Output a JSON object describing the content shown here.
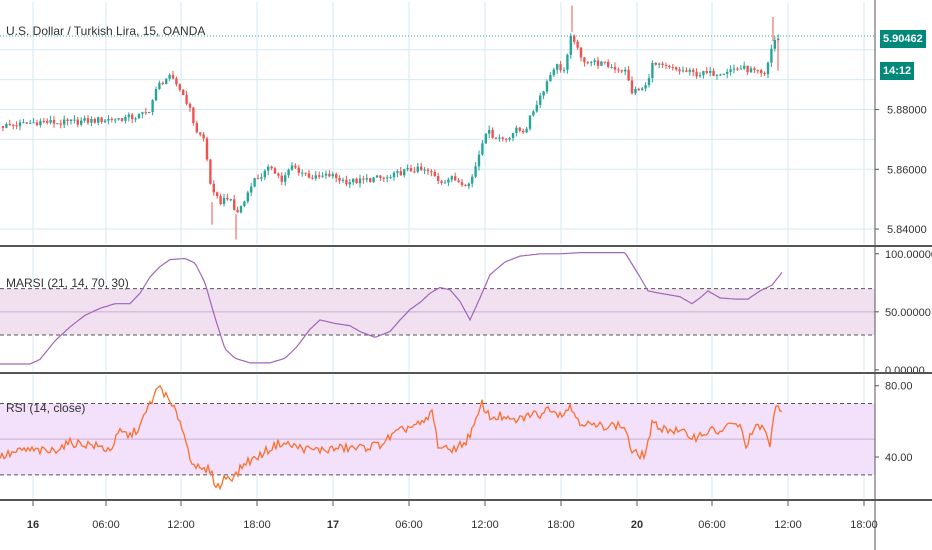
{
  "colors": {
    "up": "#26a69a",
    "down": "#ef5350",
    "marsi_line": "#a066b8",
    "marsi_band": "#f0e0f0",
    "rsi_line": "#ff6d2a",
    "rsi_band": "#f3e1fb",
    "last_price_line": "#26a69a",
    "grid": "#d6eaf0",
    "separator": "#555555",
    "axis_text": "#333333"
  },
  "chart_data": [
    {
      "type": "candlestick",
      "title": "U.S. Dollar / Turkish Lira, 15, OANDA",
      "last_price_label": "5.90462",
      "countdown_label": "14:12",
      "last_price": 5.90462,
      "ylim": [
        5.835,
        5.916
      ],
      "y_ticks": [
        5.84,
        5.86,
        5.88
      ],
      "y_tick_labels": [
        "5.84000",
        "5.86000",
        "5.88000"
      ],
      "grid": true,
      "keypoints": [
        [
          0,
          5.8745
        ],
        [
          20,
          5.875
        ],
        [
          40,
          5.876
        ],
        [
          60,
          5.8755
        ],
        [
          80,
          5.876
        ],
        [
          100,
          5.8765
        ],
        [
          120,
          5.877
        ],
        [
          135,
          5.8775
        ],
        [
          148,
          5.879
        ],
        [
          158,
          5.888
        ],
        [
          168,
          5.891
        ],
        [
          178,
          5.888
        ],
        [
          188,
          5.882
        ],
        [
          196,
          5.873
        ],
        [
          204,
          5.87
        ],
        [
          212,
          5.852
        ],
        [
          220,
          5.849
        ],
        [
          228,
          5.851
        ],
        [
          236,
          5.845
        ],
        [
          244,
          5.849
        ],
        [
          252,
          5.856
        ],
        [
          262,
          5.858
        ],
        [
          272,
          5.861
        ],
        [
          282,
          5.856
        ],
        [
          292,
          5.861
        ],
        [
          302,
          5.859
        ],
        [
          315,
          5.857
        ],
        [
          330,
          5.858
        ],
        [
          345,
          5.856
        ],
        [
          360,
          5.856
        ],
        [
          375,
          5.857
        ],
        [
          390,
          5.857
        ],
        [
          400,
          5.859
        ],
        [
          415,
          5.86
        ],
        [
          430,
          5.859
        ],
        [
          440,
          5.856
        ],
        [
          450,
          5.857
        ],
        [
          460,
          5.856
        ],
        [
          470,
          5.855
        ],
        [
          478,
          5.864
        ],
        [
          485,
          5.873
        ],
        [
          495,
          5.871
        ],
        [
          505,
          5.87
        ],
        [
          515,
          5.873
        ],
        [
          525,
          5.873
        ],
        [
          535,
          5.881
        ],
        [
          545,
          5.888
        ],
        [
          555,
          5.895
        ],
        [
          565,
          5.893
        ],
        [
          572,
          5.906
        ],
        [
          580,
          5.897
        ],
        [
          592,
          5.896
        ],
        [
          605,
          5.895
        ],
        [
          615,
          5.894
        ],
        [
          625,
          5.893
        ],
        [
          632,
          5.886
        ],
        [
          645,
          5.887
        ],
        [
          652,
          5.895
        ],
        [
          665,
          5.894
        ],
        [
          680,
          5.893
        ],
        [
          695,
          5.892
        ],
        [
          710,
          5.892
        ],
        [
          725,
          5.893
        ],
        [
          740,
          5.894
        ],
        [
          752,
          5.893
        ],
        [
          765,
          5.891
        ],
        [
          773,
          5.903
        ],
        [
          780,
          5.904
        ]
      ]
    },
    {
      "type": "line",
      "title": "MARSI (21, 14, 70, 30)",
      "ylim": [
        -1,
        105
      ],
      "y_ticks": [
        0,
        50,
        100
      ],
      "y_tick_labels": [
        "0.00000",
        "50.00000",
        "100.00000"
      ],
      "band": [
        30,
        70
      ],
      "series": [
        {
          "name": "MARSI",
          "keypoints": [
            [
              0,
              5
            ],
            [
              30,
              5
            ],
            [
              40,
              9
            ],
            [
              55,
              25
            ],
            [
              70,
              37
            ],
            [
              85,
              47
            ],
            [
              100,
              53
            ],
            [
              115,
              57
            ],
            [
              130,
              57
            ],
            [
              140,
              66
            ],
            [
              150,
              80
            ],
            [
              160,
              89
            ],
            [
              170,
              95
            ],
            [
              185,
              96
            ],
            [
              195,
              92
            ],
            [
              205,
              75
            ],
            [
              215,
              45
            ],
            [
              225,
              18
            ],
            [
              235,
              10
            ],
            [
              250,
              6
            ],
            [
              270,
              6
            ],
            [
              285,
              10
            ],
            [
              297,
              20
            ],
            [
              310,
              35
            ],
            [
              320,
              43
            ],
            [
              335,
              40
            ],
            [
              350,
              38
            ],
            [
              360,
              33
            ],
            [
              375,
              28
            ],
            [
              390,
              33
            ],
            [
              400,
              43
            ],
            [
              410,
              52
            ],
            [
              420,
              58
            ],
            [
              430,
              66
            ],
            [
              440,
              71
            ],
            [
              450,
              69
            ],
            [
              460,
              59
            ],
            [
              470,
              43
            ],
            [
              480,
              62
            ],
            [
              490,
              82
            ],
            [
              505,
              93
            ],
            [
              520,
              98
            ],
            [
              540,
              100
            ],
            [
              560,
              100
            ],
            [
              580,
              101
            ],
            [
              600,
              101
            ],
            [
              625,
              101
            ],
            [
              640,
              80
            ],
            [
              648,
              68
            ],
            [
              660,
              66
            ],
            [
              680,
              63
            ],
            [
              692,
              57
            ],
            [
              700,
              62
            ],
            [
              708,
              68
            ],
            [
              720,
              62
            ],
            [
              735,
              61
            ],
            [
              748,
              61
            ],
            [
              760,
              68
            ],
            [
              772,
              73
            ],
            [
              782,
              84
            ]
          ]
        }
      ]
    },
    {
      "type": "line",
      "title": "RSI (14, close)",
      "ylim": [
        17,
        86
      ],
      "y_ticks": [
        40,
        80
      ],
      "y_tick_labels": [
        "40.00",
        "80.00"
      ],
      "band": [
        30,
        70
      ],
      "series": [
        {
          "name": "RSI",
          "keypoints": [
            [
              0,
              40
            ],
            [
              25,
              44
            ],
            [
              50,
              43
            ],
            [
              70,
              48
            ],
            [
              90,
              47
            ],
            [
              110,
              44
            ],
            [
              120,
              54
            ],
            [
              130,
              52
            ],
            [
              140,
              57
            ],
            [
              150,
              70
            ],
            [
              160,
              80
            ],
            [
              170,
              70
            ],
            [
              180,
              61
            ],
            [
              190,
              40
            ],
            [
              200,
              32
            ],
            [
              210,
              33
            ],
            [
              215,
              25
            ],
            [
              220,
              23
            ],
            [
              225,
              29
            ],
            [
              235,
              29
            ],
            [
              245,
              37
            ],
            [
              255,
              39
            ],
            [
              265,
              43
            ],
            [
              280,
              48
            ],
            [
              295,
              46
            ],
            [
              310,
              44
            ],
            [
              325,
              44
            ],
            [
              340,
              45
            ],
            [
              360,
              45
            ],
            [
              380,
              47
            ],
            [
              395,
              53
            ],
            [
              410,
              57
            ],
            [
              425,
              59
            ],
            [
              432,
              66
            ],
            [
              438,
              47
            ],
            [
              445,
              44
            ],
            [
              455,
              45
            ],
            [
              465,
              48
            ],
            [
              475,
              58
            ],
            [
              482,
              70
            ],
            [
              490,
              62
            ],
            [
              500,
              63
            ],
            [
              510,
              60
            ],
            [
              520,
              61
            ],
            [
              530,
              64
            ],
            [
              540,
              64
            ],
            [
              550,
              68
            ],
            [
              560,
              64
            ],
            [
              570,
              68
            ],
            [
              580,
              60
            ],
            [
              595,
              57
            ],
            [
              610,
              58
            ],
            [
              625,
              57
            ],
            [
              632,
              42
            ],
            [
              645,
              41
            ],
            [
              652,
              58
            ],
            [
              665,
              56
            ],
            [
              680,
              54
            ],
            [
              695,
              51
            ],
            [
              710,
              55
            ],
            [
              720,
              54
            ],
            [
              730,
              58
            ],
            [
              740,
              58
            ],
            [
              745,
              46
            ],
            [
              755,
              56
            ],
            [
              765,
              57
            ],
            [
              770,
              44
            ],
            [
              775,
              68
            ],
            [
              782,
              68
            ]
          ]
        }
      ]
    }
  ],
  "x_axis": {
    "ticks": [
      {
        "label": "16",
        "bold": true
      },
      {
        "label": "06:00",
        "bold": false
      },
      {
        "label": "12:00",
        "bold": false
      },
      {
        "label": "18:00",
        "bold": false
      },
      {
        "label": "17",
        "bold": true
      },
      {
        "label": "06:00",
        "bold": false
      },
      {
        "label": "12:00",
        "bold": false
      },
      {
        "label": "18:00",
        "bold": false
      },
      {
        "label": "20",
        "bold": true
      },
      {
        "label": "06:00",
        "bold": false
      },
      {
        "label": "12:00",
        "bold": false
      },
      {
        "label": "18:00",
        "bold": false
      }
    ]
  }
}
